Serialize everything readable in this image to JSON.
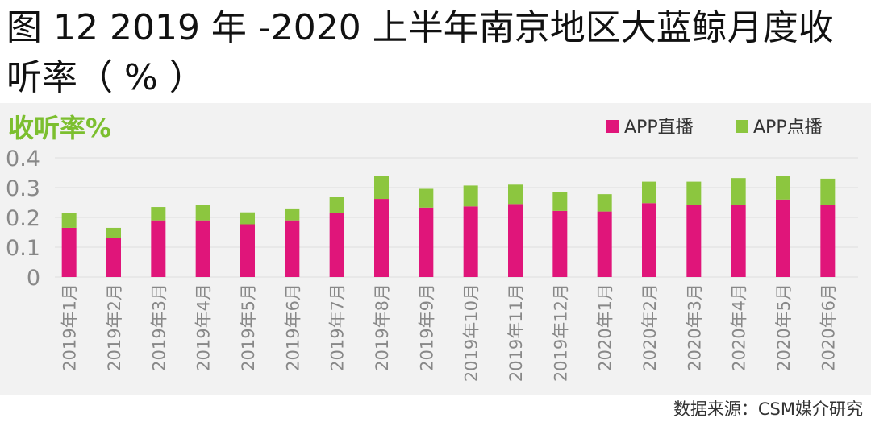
{
  "figure": {
    "title": "图 12 2019 年 -2020 上半年南京地区大蓝鲸月度收听率（ % ）",
    "source": "数据来源：CSM媒介研究"
  },
  "colors": {
    "live": "#e0157a",
    "ondemand": "#8cc63f",
    "ylabel": "#7cbf2f",
    "tick": "#888888",
    "grid": "#dddddd"
  },
  "chart_data": {
    "type": "bar",
    "stacked": true,
    "ylabel": "收听率%",
    "ylim": [
      0,
      0.4
    ],
    "yticks": [
      "0",
      "0.1",
      "0.2",
      "0.3",
      "0.4"
    ],
    "grid": true,
    "legend_position": "top-right",
    "categories": [
      "2019年1月",
      "2019年2月",
      "2019年3月",
      "2019年4月",
      "2019年5月",
      "2019年6月",
      "2019年7月",
      "2019年8月",
      "2019年9月",
      "2019年10月",
      "2019年11月",
      "2019年12月",
      "2020年1月",
      "2020年2月",
      "2020年3月",
      "2020年4月",
      "2020年5月",
      "2020年6月"
    ],
    "series": [
      {
        "name": "APP直播",
        "values": [
          0.165,
          0.132,
          0.19,
          0.19,
          0.177,
          0.19,
          0.215,
          0.262,
          0.233,
          0.237,
          0.245,
          0.222,
          0.22,
          0.248,
          0.242,
          0.242,
          0.26,
          0.242
        ]
      },
      {
        "name": "APP点播",
        "values": [
          0.05,
          0.033,
          0.045,
          0.052,
          0.04,
          0.04,
          0.053,
          0.076,
          0.063,
          0.07,
          0.065,
          0.062,
          0.058,
          0.072,
          0.078,
          0.09,
          0.078,
          0.088
        ]
      }
    ]
  }
}
